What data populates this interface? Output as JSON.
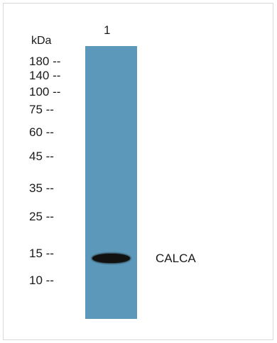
{
  "blot": {
    "lane_label": "1",
    "unit_label": "kDa",
    "markers": [
      "180 --",
      "140 --",
      "100 --",
      "75 --",
      "60 --",
      "45 --",
      "35 --",
      "25 --",
      "15 --",
      "10 --"
    ],
    "band_label": "CALCA",
    "colors": {
      "lane": "#5c98ba",
      "band": "#111111",
      "frame": "#d9d9d9"
    }
  }
}
